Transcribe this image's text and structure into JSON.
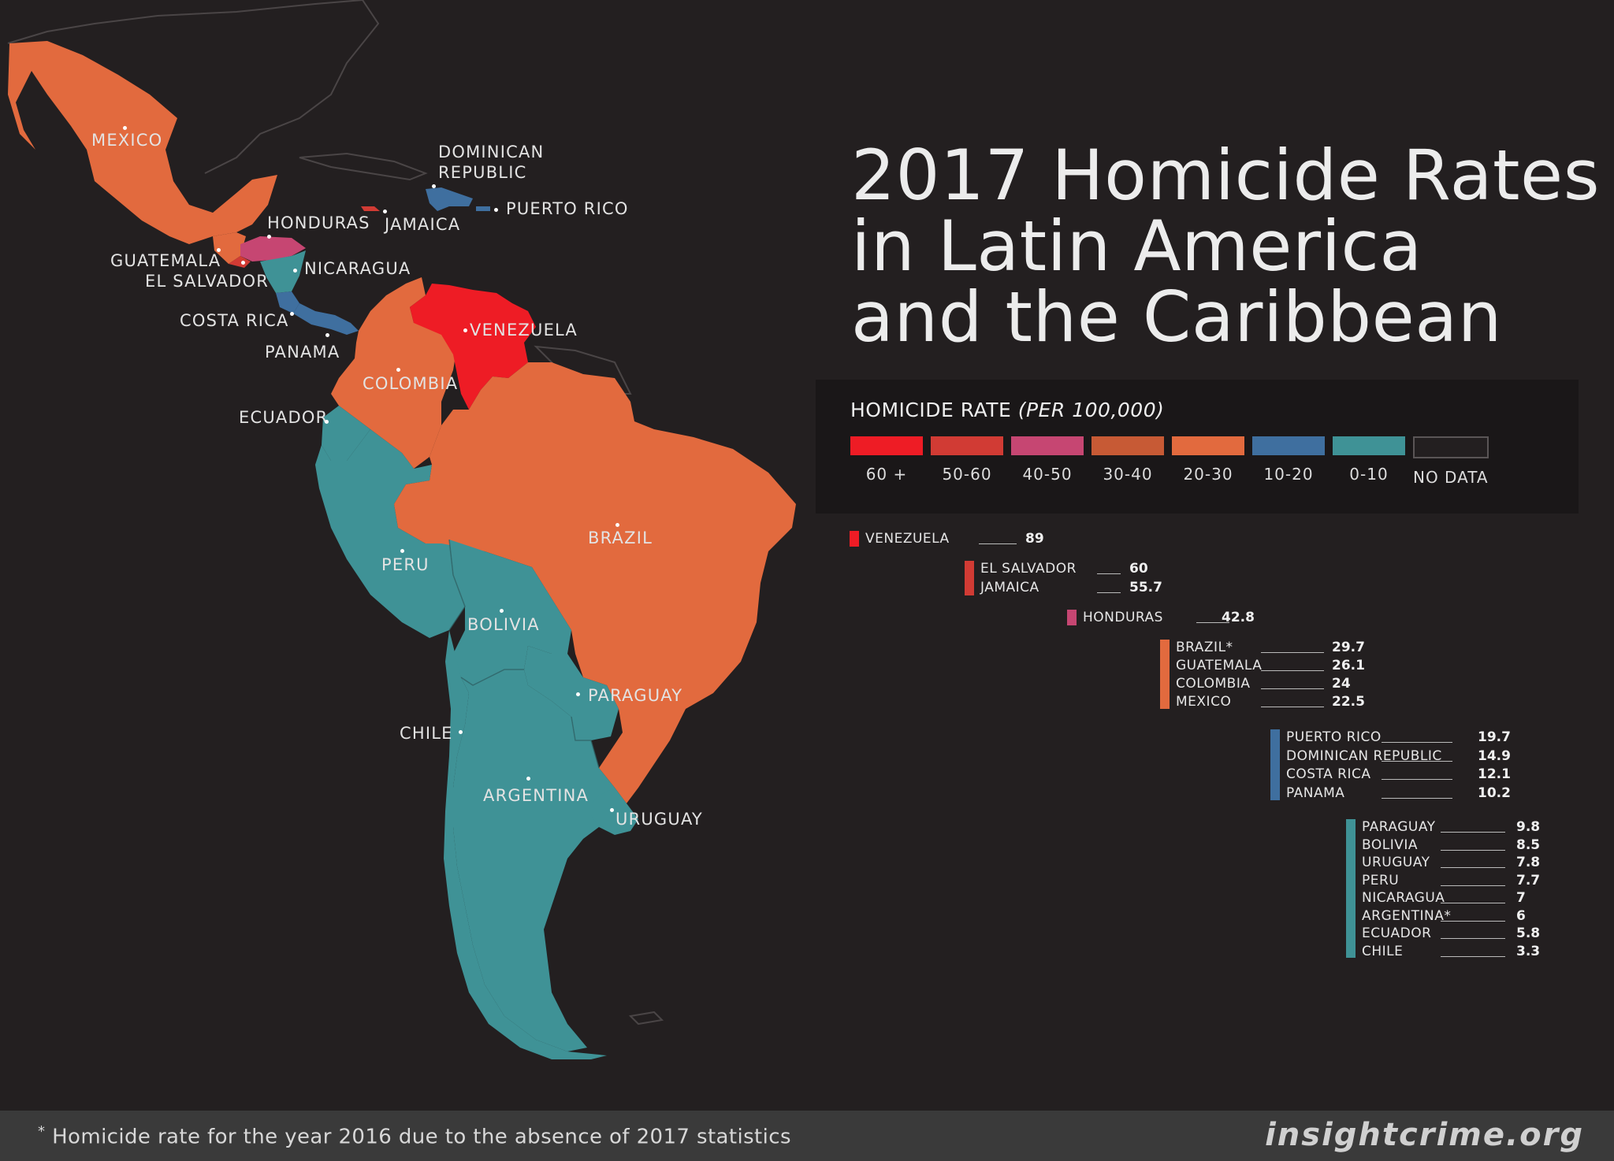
{
  "title_lines": [
    "2017 Homicide Rates",
    "in Latin America",
    "and the Caribbean"
  ],
  "legend": {
    "title_main": "HOMICIDE RATE ",
    "title_italic": "(PER 100,000)",
    "items": [
      {
        "label": "60 +",
        "color": "#ee1c25"
      },
      {
        "label": "50-60",
        "color": "#d13b34"
      },
      {
        "label": "40-50",
        "color": "#c64672"
      },
      {
        "label": "30-40",
        "color": "#c75a35"
      },
      {
        "label": "20-30",
        "color": "#e26a3e"
      },
      {
        "label": "10-20",
        "color": "#3f6f9f"
      },
      {
        "label": "0-10",
        "color": "#3f9296"
      },
      {
        "label": "NO DATA",
        "color": "#231f20"
      }
    ]
  },
  "rankings": [
    {
      "color": "#ee1c25",
      "rows": [
        {
          "name": "VENEZUELA",
          "value": "89"
        }
      ]
    },
    {
      "color": "#d13b34",
      "rows": [
        {
          "name": "EL SALVADOR",
          "value": "60"
        },
        {
          "name": "JAMAICA",
          "value": "55.7"
        }
      ]
    },
    {
      "color": "#c64672",
      "rows": [
        {
          "name": "HONDURAS",
          "value": "42.8"
        }
      ]
    },
    {
      "color": "#e26a3e",
      "rows": [
        {
          "name": "BRAZIL*",
          "value": "29.7"
        },
        {
          "name": "GUATEMALA",
          "value": "26.1"
        },
        {
          "name": "COLOMBIA",
          "value": "24"
        },
        {
          "name": "MEXICO",
          "value": "22.5"
        }
      ]
    },
    {
      "color": "#3f6f9f",
      "rows": [
        {
          "name": "PUERTO RICO",
          "value": "19.7"
        },
        {
          "name": "DOMINICAN REPUBLIC",
          "value": "14.9"
        },
        {
          "name": "COSTA RICA",
          "value": "12.1"
        },
        {
          "name": "PANAMA",
          "value": "10.2"
        }
      ]
    },
    {
      "color": "#3f9296",
      "rows": [
        {
          "name": "PARAGUAY",
          "value": "9.8"
        },
        {
          "name": "BOLIVIA",
          "value": "8.5"
        },
        {
          "name": "URUGUAY",
          "value": "7.8"
        },
        {
          "name": "PERU",
          "value": "7.7"
        },
        {
          "name": "NICARAGUA",
          "value": "7"
        },
        {
          "name": "ARGENTINA*",
          "value": "6"
        },
        {
          "name": "ECUADOR",
          "value": "5.8"
        },
        {
          "name": "CHILE",
          "value": "3.3"
        }
      ]
    }
  ],
  "map_labels": {
    "mexico": "MEXICO",
    "dominican_republic_1": "DOMINICAN",
    "dominican_republic_2": "REPUBLIC",
    "puerto_rico": "PUERTO RICO",
    "honduras": "HONDURAS",
    "jamaica": "JAMAICA",
    "guatemala": "GUATEMALA",
    "el_salvador": "EL SALVADOR",
    "nicaragua": "NICARAGUA",
    "costa_rica": "COSTA RICA",
    "panama": "PANAMA",
    "venezuela": "VENEZUELA",
    "colombia": "COLOMBIA",
    "ecuador": "ECUADOR",
    "brazil": "BRAZIL",
    "peru": "PERU",
    "bolivia": "BOLIVIA",
    "paraguay": "PARAGUAY",
    "chile": "CHILE",
    "argentina": "ARGENTINA",
    "uruguay": "URUGUAY"
  },
  "footnote_star": "*",
  "footnote": "Homicide rate for the year 2016 due to the absence of 2017 statistics",
  "brand": "insightcrime.org"
}
